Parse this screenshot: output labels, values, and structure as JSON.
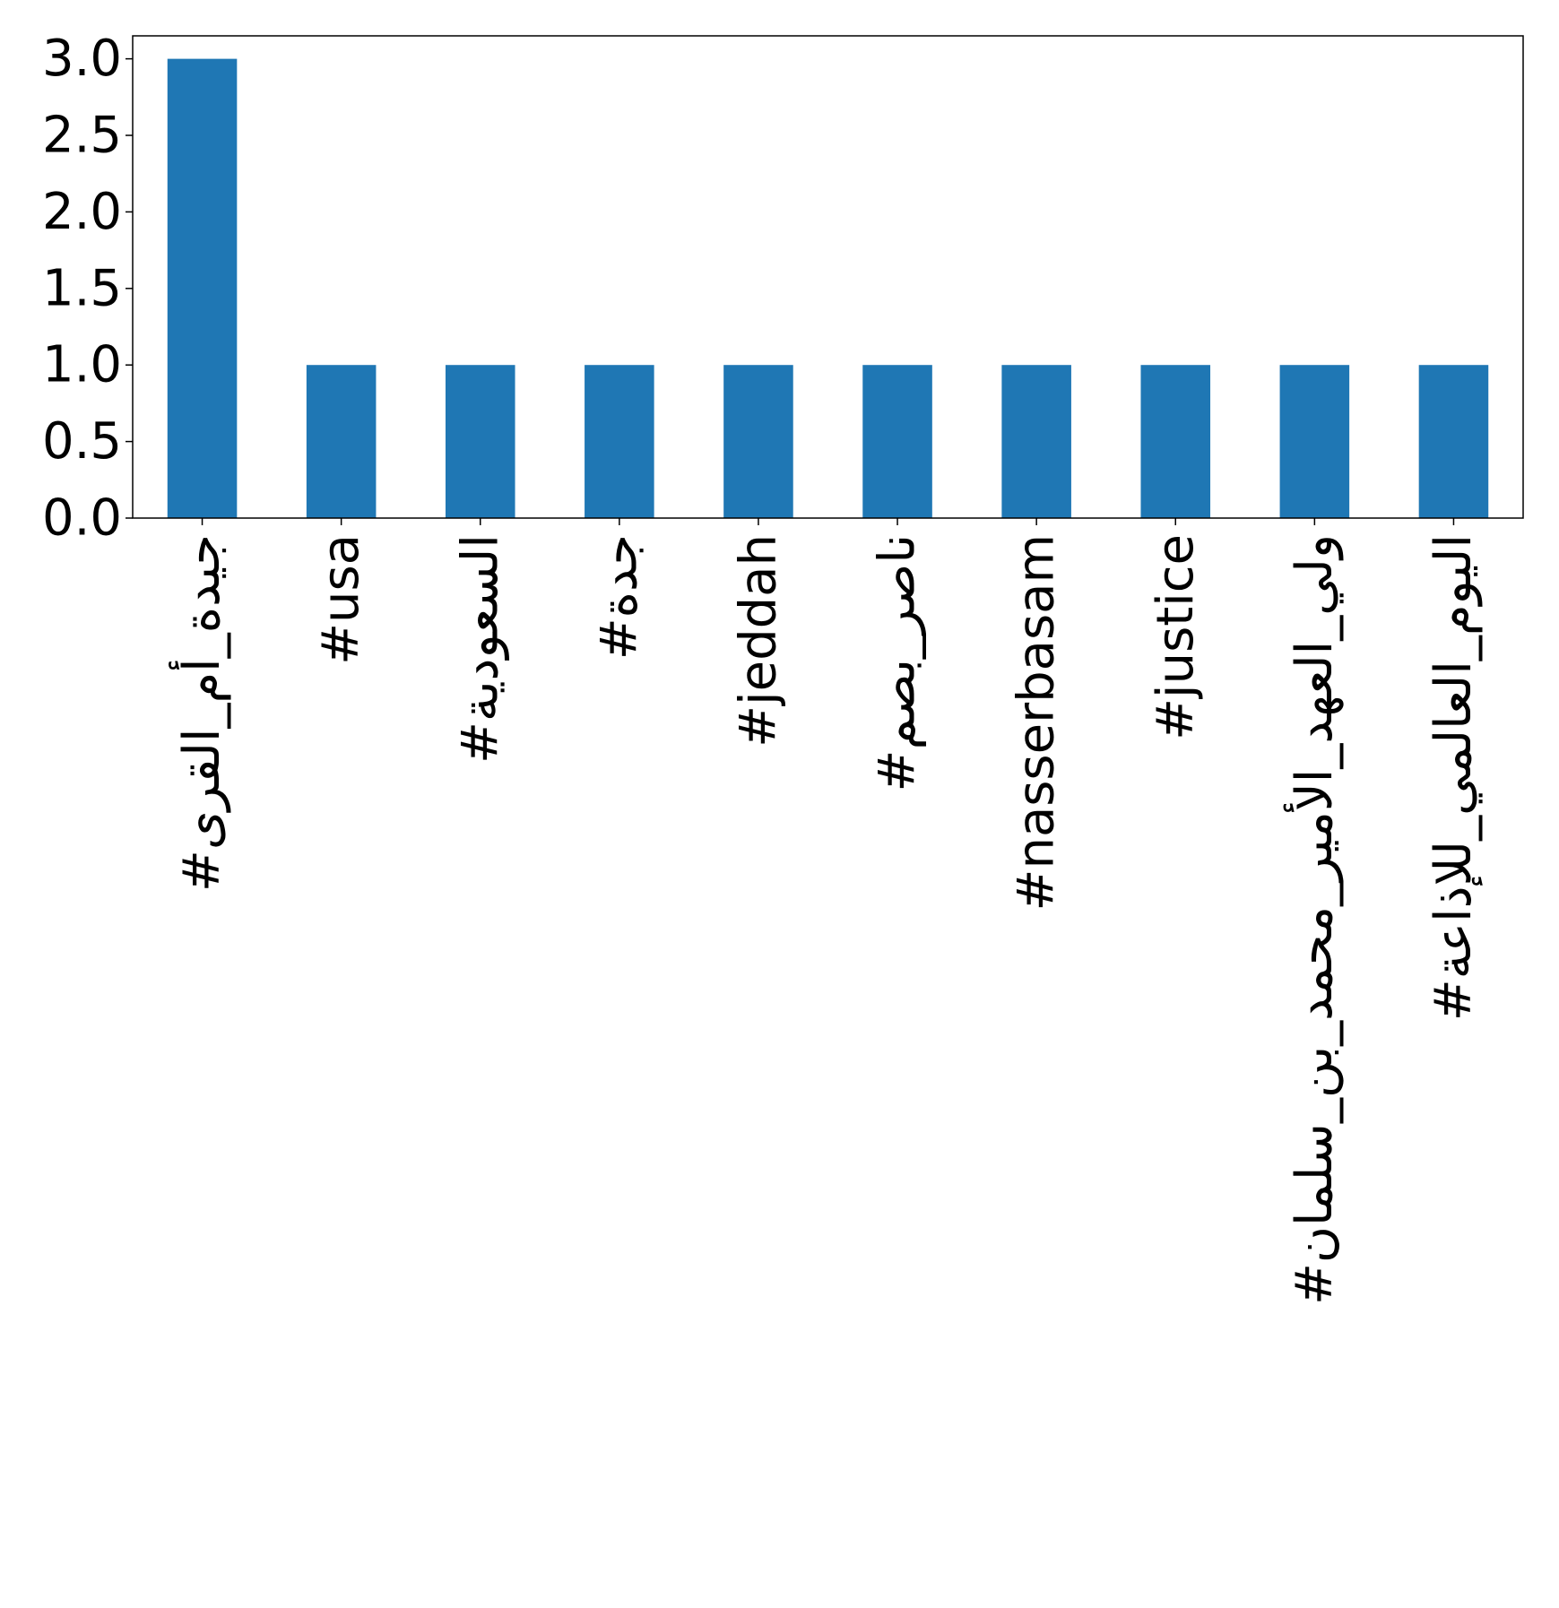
{
  "chart_data": {
    "type": "bar",
    "title": "",
    "xlabel": "",
    "ylabel": "",
    "categories": [
      "#جيدة_أم_القرى",
      "#usa",
      "#السعودية",
      "#جدة",
      "#jeddah",
      "#ناصر_بصم",
      "#nasserbasam",
      "#justice",
      "#ولي_العهد_الأمير_محمد_بن_سلمان",
      "#اليوم_العالمي_للإذاعة"
    ],
    "values": [
      3,
      1,
      1,
      1,
      1,
      1,
      1,
      1,
      1,
      1
    ],
    "ylim": [
      0,
      3.15
    ],
    "yticks": [
      "0.0",
      "0.5",
      "1.0",
      "1.5",
      "2.0",
      "2.5",
      "3.0"
    ],
    "bar_color": "#1f77b4",
    "grid": false,
    "legend": "none"
  }
}
